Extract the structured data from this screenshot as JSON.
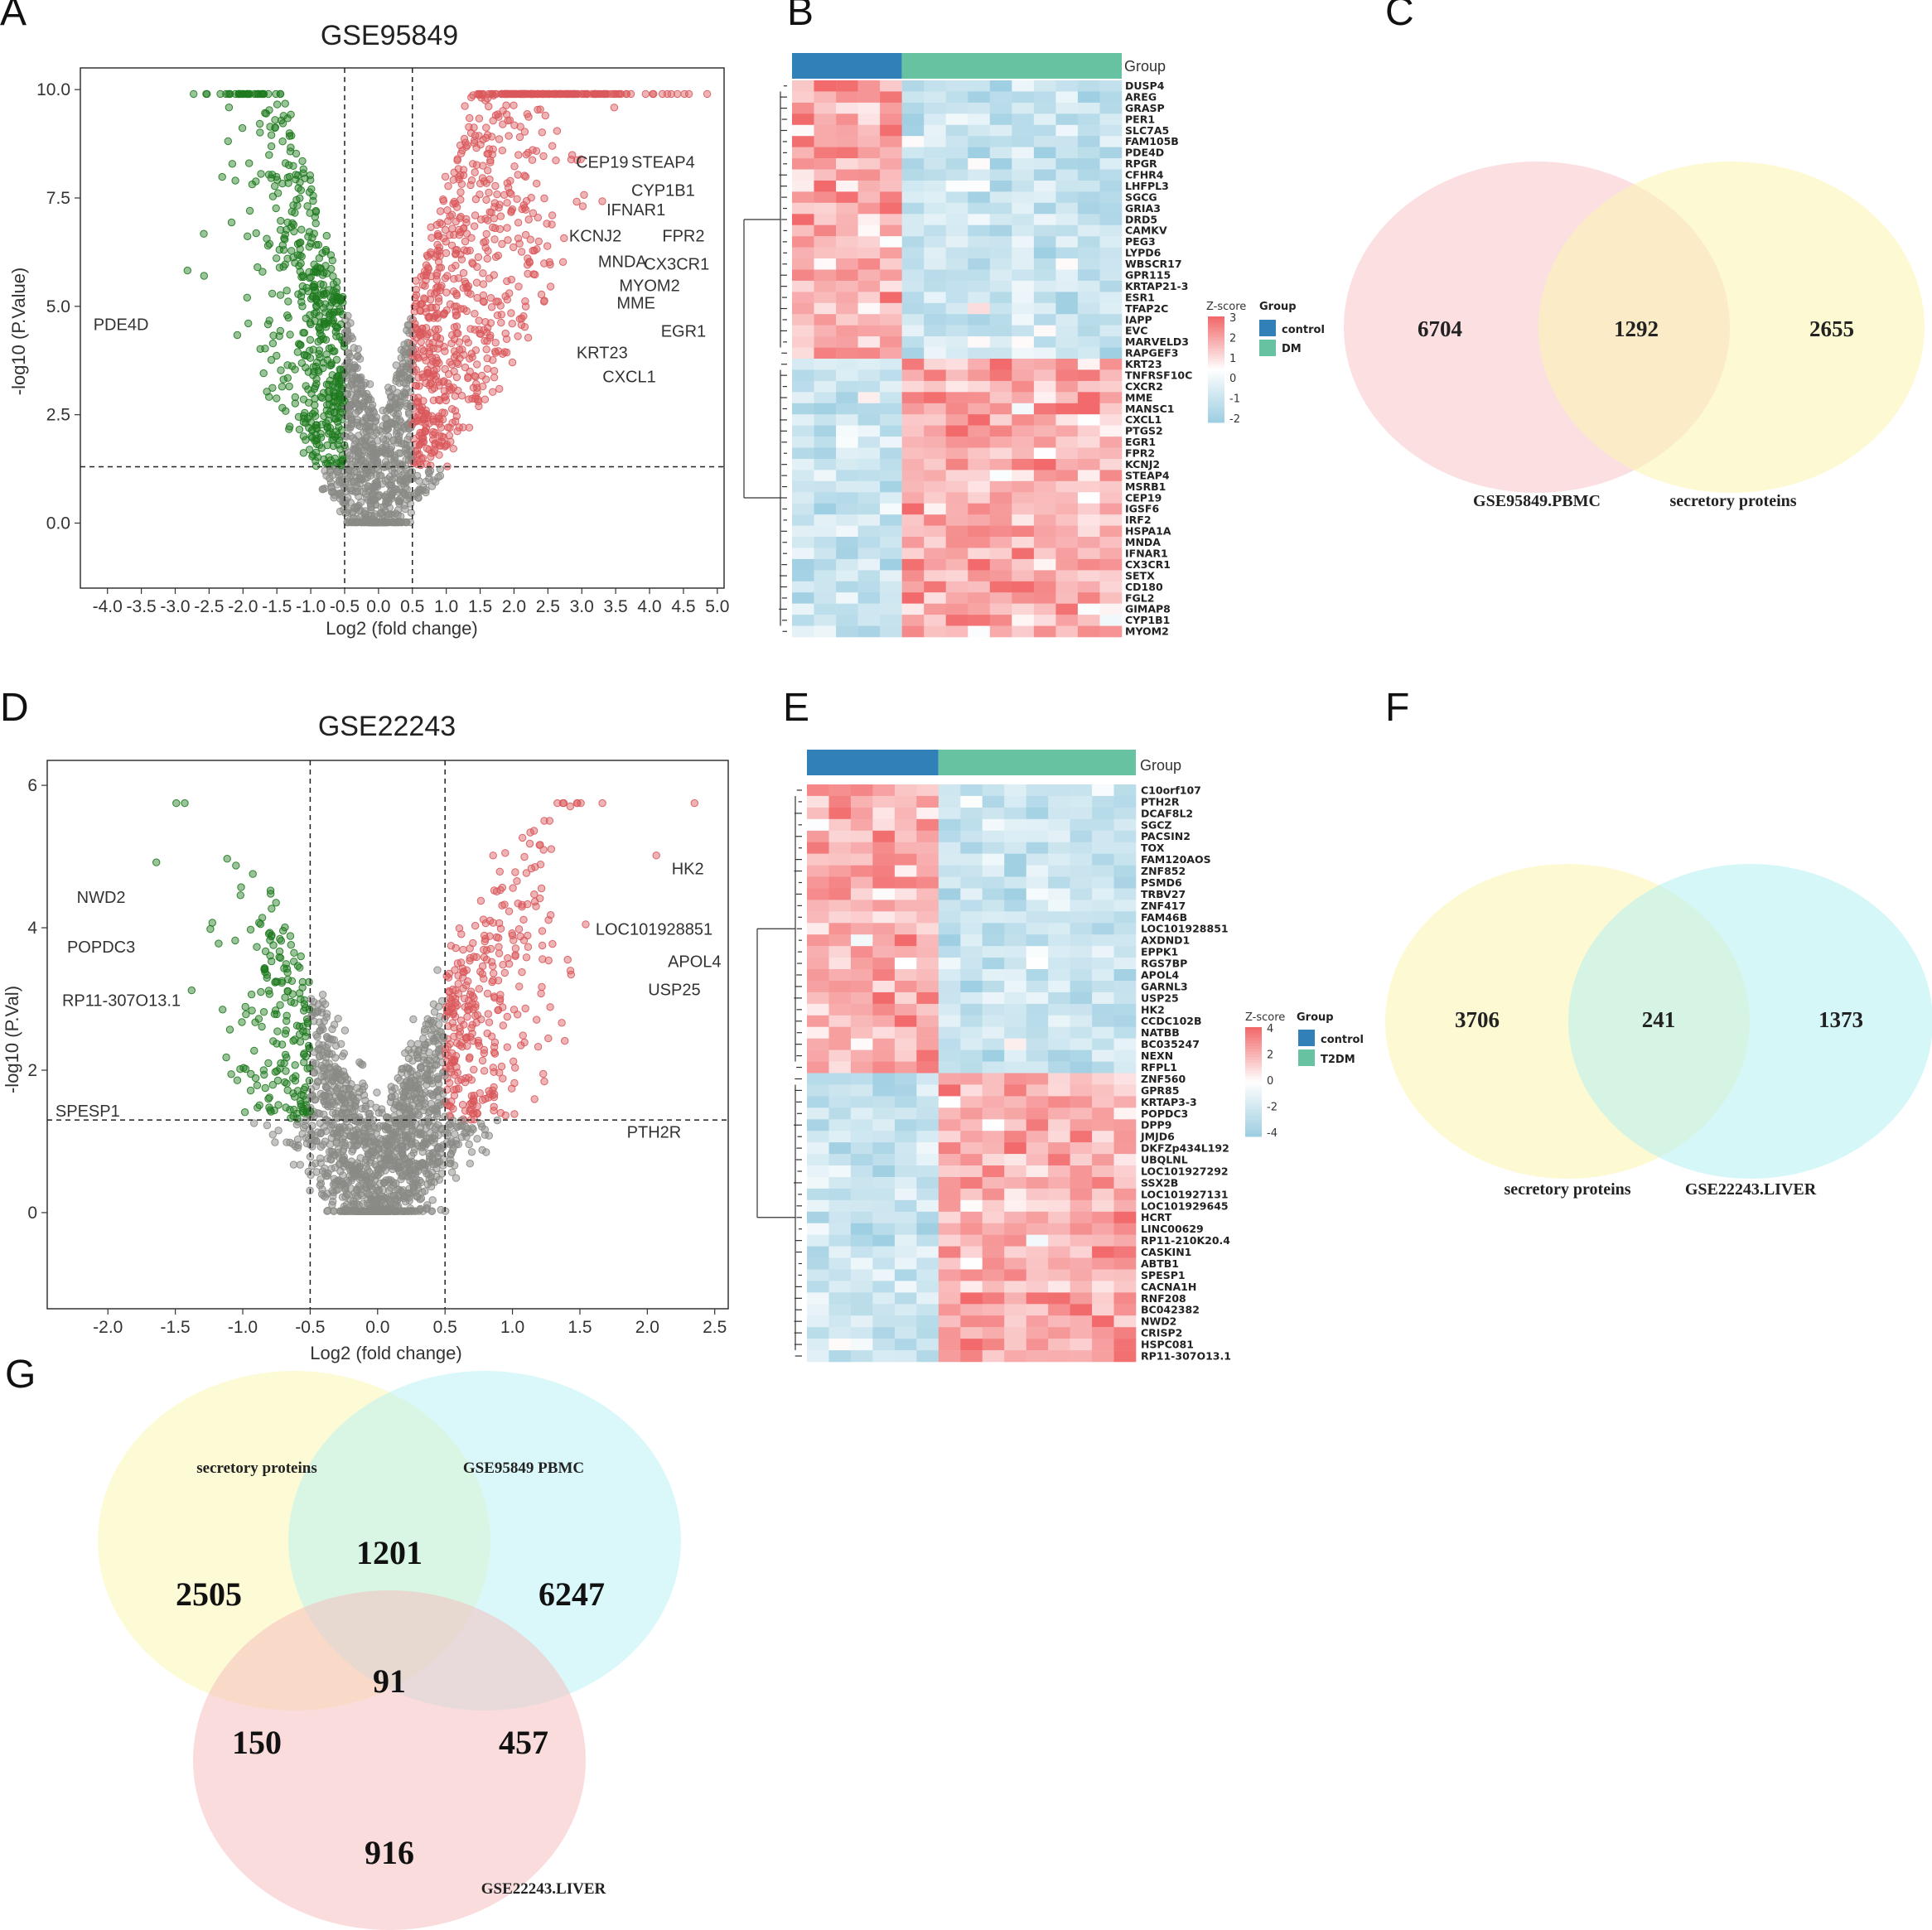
{
  "panels": {
    "A": "A",
    "B": "B",
    "C": "C",
    "D": "D",
    "E": "E",
    "F": "F",
    "G": "G"
  },
  "colors": {
    "down": "#1e7a1e",
    "up": "#d9585c",
    "ns": "#8a8a86",
    "control": "#3181b8",
    "case": "#66c2a0",
    "heat_high": "#f26a6b",
    "heat_low": "#9fcfe2"
  },
  "chart_data": [
    {
      "id": "A",
      "type": "scatter",
      "title": "GSE95849",
      "xlabel": "Log2 (fold change)",
      "ylabel": "-log10 (P.Value)",
      "xlim": [
        -4.4,
        5.1
      ],
      "ylim": [
        -1.5,
        10.5
      ],
      "xticks": [
        -4.0,
        -3.5,
        -3.0,
        -2.5,
        -2.0,
        -1.5,
        -1.0,
        -0.5,
        0.0,
        0.5,
        1.0,
        1.5,
        2.0,
        2.5,
        3.0,
        3.5,
        4.0,
        4.5,
        5.0
      ],
      "yticks": [
        0.0,
        2.5,
        5.0,
        7.5,
        10.0
      ],
      "fc_cutoff": 0.5,
      "p_cutoff": 1.3,
      "labels": [
        {
          "gene": "CEP19",
          "x": 3.3,
          "y": 8.2
        },
        {
          "gene": "STEAP4",
          "x": 4.2,
          "y": 8.2
        },
        {
          "gene": "CYP1B1",
          "x": 4.2,
          "y": 7.55
        },
        {
          "gene": "IFNAR1",
          "x": 3.8,
          "y": 7.1
        },
        {
          "gene": "KCNJ2",
          "x": 3.2,
          "y": 6.5
        },
        {
          "gene": "FPR2",
          "x": 4.5,
          "y": 6.5
        },
        {
          "gene": "MNDA",
          "x": 3.6,
          "y": 5.9
        },
        {
          "gene": "CX3CR1",
          "x": 4.4,
          "y": 5.85
        },
        {
          "gene": "MYOM2",
          "x": 4.0,
          "y": 5.35
        },
        {
          "gene": "MME",
          "x": 3.8,
          "y": 4.95
        },
        {
          "gene": "EGR1",
          "x": 4.5,
          "y": 4.3
        },
        {
          "gene": "KRT23",
          "x": 3.3,
          "y": 3.8
        },
        {
          "gene": "CXCL1",
          "x": 3.7,
          "y": 3.25
        },
        {
          "gene": "PDE4D",
          "x": -3.8,
          "y": 4.45
        }
      ]
    },
    {
      "id": "D",
      "type": "scatter",
      "title": "GSE22243",
      "xlabel": "Log2 (fold change)",
      "ylabel": "-log10 (P.Val)",
      "xlim": [
        -2.45,
        2.6
      ],
      "ylim": [
        -1.35,
        6.35
      ],
      "xticks": [
        -2.0,
        -1.5,
        -1.0,
        -0.5,
        0.0,
        0.5,
        1.0,
        1.5,
        2.0,
        2.5
      ],
      "yticks": [
        0,
        2,
        4,
        6
      ],
      "fc_cutoff": 0.5,
      "p_cutoff": 1.3,
      "labels": [
        {
          "gene": "HK2",
          "x": 2.3,
          "y": 4.75
        },
        {
          "gene": "LOC101928851",
          "x": 2.05,
          "y": 3.9
        },
        {
          "gene": "APOL4",
          "x": 2.35,
          "y": 3.45
        },
        {
          "gene": "USP25",
          "x": 2.2,
          "y": 3.05
        },
        {
          "gene": "PTH2R",
          "x": 2.05,
          "y": 1.05
        },
        {
          "gene": "NWD2",
          "x": -2.05,
          "y": 4.35
        },
        {
          "gene": "POPDC3",
          "x": -2.05,
          "y": 3.65
        },
        {
          "gene": "RP11-307O13.1",
          "x": -1.9,
          "y": 2.9
        },
        {
          "gene": "SPESP1",
          "x": -2.15,
          "y": 1.35
        }
      ]
    },
    {
      "id": "B",
      "type": "heatmap",
      "group_title": "Group",
      "legend": {
        "zscore_title": "Z-score",
        "group_title": "Group",
        "ticks": [
          "3",
          "2",
          "1",
          "0",
          "-1",
          "-2"
        ],
        "groups": [
          "control",
          "DM"
        ]
      },
      "n_control": 5,
      "n_case": 10,
      "up_in_control": 25,
      "genes": [
        "DUSP4",
        "AREG",
        "GRASP",
        "PER1",
        "SLC7A5",
        "FAM105B",
        "PDE4D",
        "RPGR",
        "CFHR4",
        "LHFPL3",
        "SGCG",
        "GRIA3",
        "DRD5",
        "CAMKV",
        "PEG3",
        "LYPD6",
        "WBSCR17",
        "GPR115",
        "KRTAP21-3",
        "ESR1",
        "TFAP2C",
        "IAPP",
        "EVC",
        "MARVELD3",
        "RAPGEF3",
        "KRT23",
        "TNFRSF10C",
        "CXCR2",
        "MME",
        "MANSC1",
        "CXCL1",
        "PTGS2",
        "EGR1",
        "FPR2",
        "KCNJ2",
        "STEAP4",
        "MSRB1",
        "CEP19",
        "IGSF6",
        "IRF2",
        "HSPA1A",
        "MNDA",
        "IFNAR1",
        "CX3CR1",
        "SETX",
        "CD180",
        "FGL2",
        "GIMAP8",
        "CYP1B1",
        "MYOM2"
      ]
    },
    {
      "id": "E",
      "type": "heatmap",
      "group_title": "Group",
      "legend": {
        "zscore_title": "Z-score",
        "group_title": "Group",
        "ticks": [
          "4",
          "2",
          "0",
          "-2",
          "-4"
        ],
        "groups": [
          "control",
          "T2DM"
        ]
      },
      "n_control": 6,
      "n_case": 9,
      "up_in_control": 25,
      "genes": [
        "C10orf107",
        "PTH2R",
        "DCAF8L2",
        "SGCZ",
        "PACSIN2",
        "TOX",
        "FAM120AOS",
        "ZNF852",
        "PSMD6",
        "TRBV27",
        "ZNF417",
        "FAM46B",
        "LOC101928851",
        "AXDND1",
        "EPPK1",
        "RGS7BP",
        "APOL4",
        "GARNL3",
        "USP25",
        "HK2",
        "CCDC102B",
        "NATBB",
        "BC035247",
        "NEXN",
        "RFPL1",
        "ZNF560",
        "GPR85",
        "KRTAP3-3",
        "POPDC3",
        "DPP9",
        "JMJD6",
        "DKFZp434L192",
        "UBQLNL",
        "LOC101927292",
        "SSX2B",
        "LOC101927131",
        "LOC101929645",
        "HCRT",
        "LINC00629",
        "RP11-210K20.4",
        "CASKIN1",
        "ABTB1",
        "SPESP1",
        "CACNA1H",
        "RNF208",
        "BC042382",
        "NWD2",
        "CRISP2",
        "HSPC081",
        "RP11-307O13.1"
      ]
    },
    {
      "id": "C",
      "type": "venn",
      "sets": [
        "GSE95849.PBMC",
        "secretory proteins"
      ],
      "counts": {
        "only_a": "6704",
        "ab": "1292",
        "only_b": "2655"
      }
    },
    {
      "id": "F",
      "type": "venn",
      "sets": [
        "secretory proteins",
        "GSE22243.LIVER"
      ],
      "counts": {
        "only_a": "3706",
        "ab": "241",
        "only_b": "1373"
      }
    },
    {
      "id": "G",
      "type": "venn",
      "sets": [
        "secretory proteins",
        "GSE95849 PBMC",
        "GSE22243.LIVER"
      ],
      "counts": {
        "a": "2505",
        "ab": "1201",
        "b": "6247",
        "abc": "91",
        "ac": "150",
        "bc": "457",
        "c": "916"
      }
    }
  ]
}
